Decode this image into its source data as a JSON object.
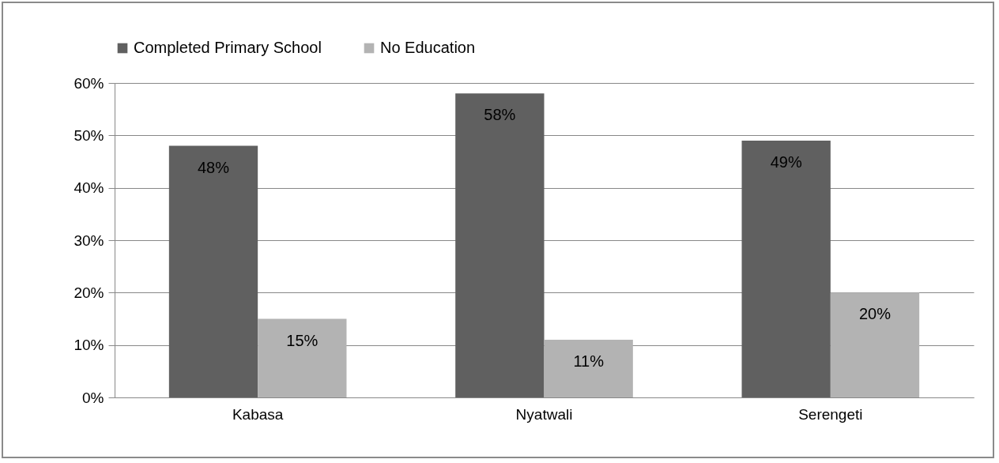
{
  "chart_data": {
    "type": "bar",
    "categories": [
      "Kabasa",
      "Nyatwali",
      "Serengeti"
    ],
    "series": [
      {
        "name": "Completed Primary School",
        "color": "#606060",
        "values": [
          48,
          58,
          49
        ],
        "value_labels": [
          "48%",
          "58%",
          "49%"
        ]
      },
      {
        "name": "No Education",
        "color": "#b3b3b3",
        "values": [
          15,
          11,
          20
        ],
        "value_labels": [
          "15%",
          "11%",
          "20%"
        ]
      }
    ],
    "ylim": [
      0,
      60
    ],
    "yticks": [
      {
        "value": 0,
        "label": "0%"
      },
      {
        "value": 10,
        "label": "10%"
      },
      {
        "value": 20,
        "label": "20%"
      },
      {
        "value": 30,
        "label": "30%"
      },
      {
        "value": 40,
        "label": "40%"
      },
      {
        "value": 50,
        "label": "50%"
      },
      {
        "value": 60,
        "label": "60%"
      }
    ],
    "grid": "y",
    "legend": "top"
  }
}
